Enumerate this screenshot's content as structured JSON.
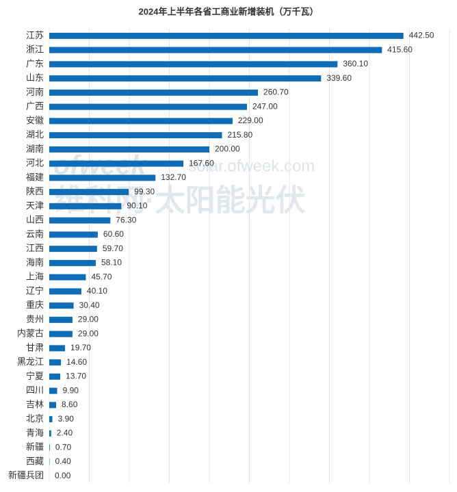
{
  "chart_data": {
    "type": "bar",
    "orientation": "horizontal",
    "title": "2024年上半年各省工商业新增装机（万千瓦）",
    "watermark": [
      "ofweek",
      "solar.ofweek.com",
      "维科网·太阳能光伏"
    ],
    "categories": [
      "江苏",
      "浙江",
      "广东",
      "山东",
      "河南",
      "广西",
      "安徽",
      "湖北",
      "湖南",
      "河北",
      "福建",
      "陕西",
      "天津",
      "山西",
      "云南",
      "江西",
      "海南",
      "上海",
      "辽宁",
      "重庆",
      "贵州",
      "内蒙古",
      "甘肃",
      "黑龙江",
      "宁夏",
      "四川",
      "吉林",
      "北京",
      "青海",
      "新疆",
      "西藏",
      "新疆兵团"
    ],
    "values": [
      442.5,
      415.6,
      360.1,
      339.6,
      260.7,
      247,
      229,
      215.8,
      200,
      167.6,
      132.7,
      99.3,
      90.1,
      76.3,
      60.6,
      59.7,
      58.1,
      45.7,
      40.1,
      30.4,
      29,
      29,
      19.7,
      14.6,
      13.7,
      9.9,
      8.6,
      3.9,
      2.4,
      0.7,
      0.4,
      0
    ],
    "value_labels": [
      "442.50",
      "415.60",
      "360.10",
      "339.60",
      "260.70",
      "247.00",
      "229.00",
      "215.80",
      "200.00",
      "167.60",
      "132.70",
      "99.30",
      "90.10",
      "76.30",
      "60.60",
      "59.70",
      "58.10",
      "45.70",
      "40.10",
      "30.40",
      "29.00",
      "29.00",
      "19.70",
      "14.60",
      "13.70",
      "9.90",
      "8.60",
      "3.90",
      "2.40",
      "0.70",
      "0.40",
      "0.00"
    ],
    "color": "#0f6db8",
    "xlim": [
      0,
      500
    ],
    "xticks": [
      0,
      50,
      100,
      150,
      200,
      250,
      300,
      350,
      400,
      450,
      500
    ],
    "grid": true
  }
}
